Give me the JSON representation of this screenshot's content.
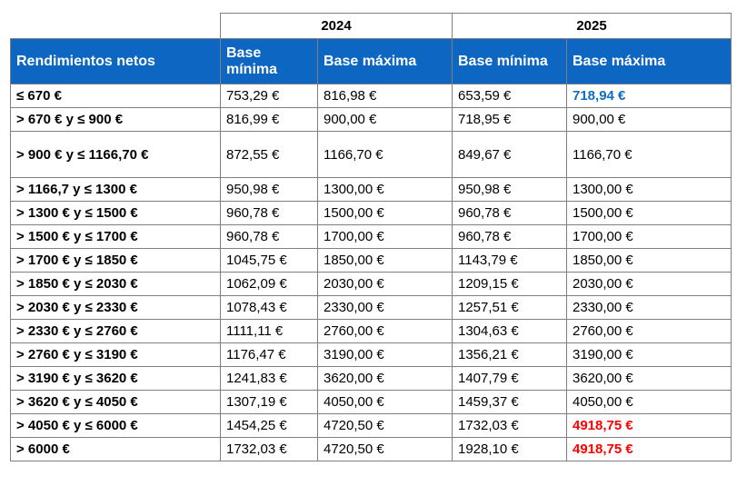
{
  "years": [
    "2024",
    "2025"
  ],
  "headers": {
    "income": "Rendimientos netos",
    "min_2024": "Base\nmínima",
    "max_2024": "Base máxima",
    "min_2025": "Base mínima",
    "max_2025": "Base máxima"
  },
  "rows": [
    {
      "range": "≤ 670 €",
      "min2024": "753,29 €",
      "max2024": "816,98 €",
      "min2025": "653,59 €",
      "max2025": "718,94 €",
      "max2025_style": "blue"
    },
    {
      "range": "> 670 € y ≤ 900 €",
      "min2024": "816,99 €",
      "max2024": "900,00 €",
      "min2025": "718,95 €",
      "max2025": "900,00 €",
      "max2025_style": "normal"
    },
    {
      "range": "> 900 € y ≤ 1166,70 €",
      "min2024": "872,55 €",
      "max2024": "1166,70 €",
      "min2025": "849,67 €",
      "max2025": "1166,70 €",
      "max2025_style": "normal"
    },
    {
      "range": "> 1166,7 y ≤ 1300 €",
      "min2024": "950,98 €",
      "max2024": "1300,00 €",
      "min2025": "950,98 €",
      "max2025": "1300,00 €",
      "max2025_style": "normal"
    },
    {
      "range": "> 1300 € y ≤ 1500 €",
      "min2024": "960,78 €",
      "max2024": "1500,00 €",
      "min2025": "960,78 €",
      "max2025": "1500,00 €",
      "max2025_style": "normal"
    },
    {
      "range": "> 1500 € y ≤ 1700 €",
      "min2024": "960,78 €",
      "max2024": "1700,00 €",
      "min2025": "960,78 €",
      "max2025": "1700,00 €",
      "max2025_style": "normal"
    },
    {
      "range": "> 1700 € y ≤ 1850 €",
      "min2024": "1045,75 €",
      "max2024": "1850,00 €",
      "min2025": "1143,79 €",
      "max2025": "1850,00 €",
      "max2025_style": "normal"
    },
    {
      "range": "> 1850 € y ≤ 2030 €",
      "min2024": "1062,09 €",
      "max2024": "2030,00 €",
      "min2025": "1209,15 €",
      "max2025": "2030,00 €",
      "max2025_style": "normal"
    },
    {
      "range": "> 2030 € y ≤ 2330 €",
      "min2024": "1078,43 €",
      "max2024": "2330,00 €",
      "min2025": "1257,51 €",
      "max2025": "2330,00 €",
      "max2025_style": "normal"
    },
    {
      "range": "> 2330 € y ≤ 2760 €",
      "min2024": "1111,11 €",
      "max2024": "2760,00 €",
      "min2025": "1304,63 €",
      "max2025": "2760,00 €",
      "max2025_style": "normal"
    },
    {
      "range": "> 2760 € y ≤ 3190 €",
      "min2024": "1176,47 €",
      "max2024": "3190,00 €",
      "min2025": "1356,21 €",
      "max2025": "3190,00 €",
      "max2025_style": "normal"
    },
    {
      "range": "> 3190 € y ≤ 3620 €",
      "min2024": "1241,83 €",
      "max2024": "3620,00 €",
      "min2025": "1407,79 €",
      "max2025": "3620,00 €",
      "max2025_style": "normal"
    },
    {
      "range": "> 3620 € y ≤ 4050 €",
      "min2024": "1307,19 €",
      "max2024": "4050,00 €",
      "min2025": "1459,37 €",
      "max2025": "4050,00 €",
      "max2025_style": "normal"
    },
    {
      "range": "> 4050 € y ≤ 6000 €",
      "min2024": "1454,25 €",
      "max2024": "4720,50 €",
      "min2025": "1732,03 €",
      "max2025": "4918,75 €",
      "max2025_style": "red"
    },
    {
      "range": "> 6000 €",
      "min2024": "1732,03 €",
      "max2024": "4720,50 €",
      "min2025": "1928,10 €",
      "max2025": "4918,75 €",
      "max2025_style": "red"
    }
  ]
}
